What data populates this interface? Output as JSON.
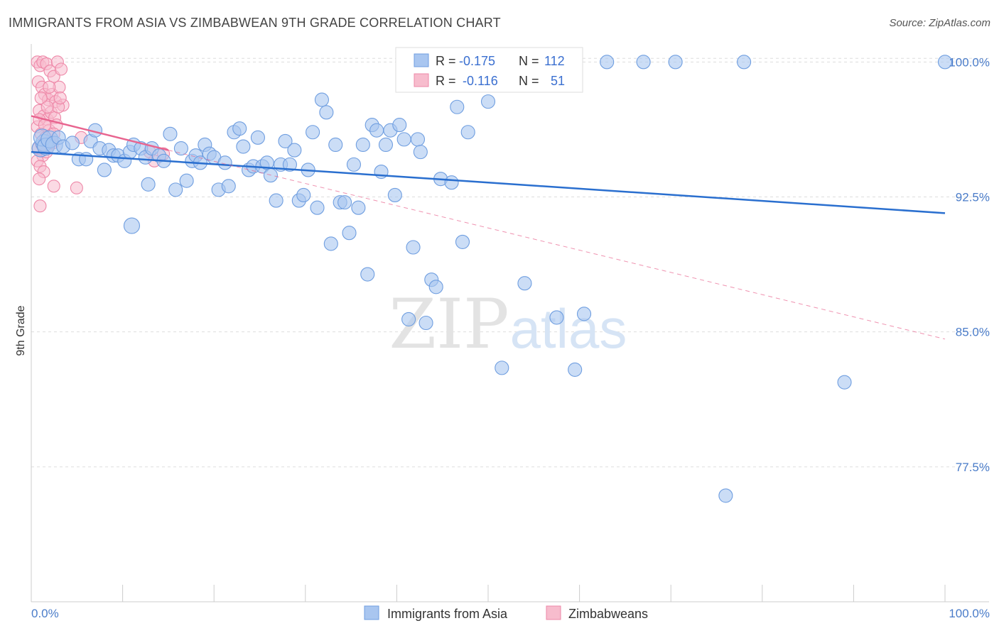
{
  "title": "IMMIGRANTS FROM ASIA VS ZIMBABWEAN 9TH GRADE CORRELATION CHART",
  "source": "Source: ZipAtlas.com",
  "watermark": {
    "zip": "ZIP",
    "atlas": "atlas"
  },
  "legend_box": [
    {
      "r_label": "R =",
      "r_value": "-0.175",
      "n_label": "N =",
      "n_value": "112"
    },
    {
      "r_label": "R =",
      "r_value": "-0.116",
      "n_label": "N =",
      "n_value": "51"
    }
  ],
  "colors": {
    "asia_fill": "#a9c6f0",
    "asia_stroke": "#6f9ee0",
    "asia_line": "#2a6fcf",
    "zim_fill": "#f7bccd",
    "zim_stroke": "#ee88a8",
    "zim_line": "#e8648f",
    "grid": "#dddddd",
    "axis_label": "#4a7cc9"
  },
  "chart_data": {
    "type": "scatter",
    "title": "IMMIGRANTS FROM ASIA VS ZIMBABWEAN 9TH GRADE CORRELATION CHART",
    "xlabel": "",
    "ylabel": "9th Grade",
    "xlim": [
      0,
      100
    ],
    "ylim": [
      70.0,
      101.0
    ],
    "x_tick_labels": [
      "0.0%",
      "100.0%"
    ],
    "y_ticks": [
      77.5,
      85.0,
      92.5,
      100.0
    ],
    "y_tick_labels": [
      "77.5%",
      "85.0%",
      "92.5%",
      "100.0%"
    ],
    "grid": true,
    "legend_position": "bottom",
    "series": [
      {
        "name": "Immigrants from Asia",
        "trend": {
          "x": [
            0,
            100
          ],
          "y": [
            95.0,
            91.6
          ]
        },
        "points": [
          [
            0.4,
            95.2
          ],
          [
            0.8,
            95.5
          ],
          [
            1.2,
            95.8
          ],
          [
            1.6,
            95.3
          ],
          [
            2.0,
            95.7
          ],
          [
            2.5,
            95.4
          ],
          [
            3.0,
            95.8
          ],
          [
            3.5,
            95.3
          ],
          [
            4.5,
            95.5
          ],
          [
            5.2,
            94.6
          ],
          [
            6.0,
            94.6
          ],
          [
            6.5,
            95.6
          ],
          [
            7.0,
            96.2
          ],
          [
            7.5,
            95.2
          ],
          [
            8.0,
            94.0
          ],
          [
            8.5,
            95.1
          ],
          [
            9.0,
            94.8
          ],
          [
            9.5,
            94.8
          ],
          [
            10.2,
            94.5
          ],
          [
            10.8,
            95.0
          ],
          [
            11.2,
            95.4
          ],
          [
            12.0,
            95.2
          ],
          [
            12.5,
            94.7
          ],
          [
            12.8,
            93.2
          ],
          [
            13.2,
            95.2
          ],
          [
            14.0,
            94.8
          ],
          [
            14.5,
            94.5
          ],
          [
            15.2,
            96.0
          ],
          [
            15.8,
            92.9
          ],
          [
            16.4,
            95.2
          ],
          [
            17.0,
            93.4
          ],
          [
            17.6,
            94.5
          ],
          [
            18.0,
            94.8
          ],
          [
            18.5,
            94.4
          ],
          [
            19.0,
            95.4
          ],
          [
            19.5,
            94.9
          ],
          [
            20.0,
            94.7
          ],
          [
            20.5,
            92.9
          ],
          [
            21.2,
            94.4
          ],
          [
            21.6,
            93.1
          ],
          [
            22.2,
            96.1
          ],
          [
            22.8,
            96.3
          ],
          [
            23.2,
            95.3
          ],
          [
            23.8,
            94.0
          ],
          [
            24.3,
            94.2
          ],
          [
            24.8,
            95.8
          ],
          [
            25.3,
            94.2
          ],
          [
            25.8,
            94.4
          ],
          [
            26.2,
            93.7
          ],
          [
            26.8,
            92.3
          ],
          [
            27.3,
            94.3
          ],
          [
            27.8,
            95.6
          ],
          [
            28.3,
            94.3
          ],
          [
            28.8,
            95.1
          ],
          [
            29.3,
            92.3
          ],
          [
            29.8,
            92.6
          ],
          [
            30.3,
            94.0
          ],
          [
            30.8,
            96.1
          ],
          [
            31.3,
            91.9
          ],
          [
            31.8,
            97.9
          ],
          [
            32.3,
            97.2
          ],
          [
            32.8,
            89.9
          ],
          [
            33.3,
            95.4
          ],
          [
            33.8,
            92.2
          ],
          [
            34.3,
            92.2
          ],
          [
            34.8,
            90.5
          ],
          [
            35.3,
            94.3
          ],
          [
            35.8,
            91.9
          ],
          [
            36.3,
            95.4
          ],
          [
            36.8,
            88.2
          ],
          [
            37.3,
            96.5
          ],
          [
            37.8,
            96.2
          ],
          [
            38.3,
            93.9
          ],
          [
            38.8,
            95.4
          ],
          [
            39.3,
            96.2
          ],
          [
            39.8,
            92.6
          ],
          [
            40.3,
            96.5
          ],
          [
            40.8,
            95.7
          ],
          [
            41.3,
            85.7
          ],
          [
            41.8,
            89.7
          ],
          [
            42.3,
            95.7
          ],
          [
            42.6,
            95.0
          ],
          [
            43.2,
            85.5
          ],
          [
            43.8,
            87.9
          ],
          [
            44.3,
            87.5
          ],
          [
            44.8,
            93.5
          ],
          [
            45.4,
            99.6
          ],
          [
            46.0,
            93.3
          ],
          [
            46.6,
            97.5
          ],
          [
            47.2,
            90.0
          ],
          [
            47.8,
            96.1
          ],
          [
            48.4,
            100.0
          ],
          [
            50.0,
            97.8
          ],
          [
            51.5,
            83.0
          ],
          [
            52.2,
            98.8
          ],
          [
            53.0,
            100.0
          ],
          [
            54.0,
            87.7
          ],
          [
            56.0,
            100.0
          ],
          [
            57.5,
            85.8
          ],
          [
            59.5,
            82.9
          ],
          [
            60.5,
            86.0
          ],
          [
            63.0,
            100.0
          ],
          [
            67.0,
            100.0
          ],
          [
            70.5,
            100.0
          ],
          [
            76.0,
            75.9
          ],
          [
            78.0,
            100.0
          ],
          [
            89.0,
            82.2
          ],
          [
            100.0,
            100.0
          ],
          [
            11.0,
            90.9
          ]
        ]
      },
      {
        "name": "Zimbabweans",
        "trend": {
          "x": [
            0,
            15
          ],
          "y": [
            97.0,
            95.1
          ]
        },
        "trend_extended": {
          "x": [
            15,
            100
          ],
          "y": [
            95.1,
            84.6
          ]
        },
        "points": [
          [
            0.2,
            100.0
          ],
          [
            0.5,
            99.8
          ],
          [
            0.8,
            100.0
          ],
          [
            1.2,
            99.9
          ],
          [
            1.6,
            99.5
          ],
          [
            2.0,
            99.2
          ],
          [
            2.4,
            100.0
          ],
          [
            2.8,
            99.6
          ],
          [
            0.3,
            98.9
          ],
          [
            0.7,
            98.6
          ],
          [
            1.0,
            98.2
          ],
          [
            1.4,
            97.9
          ],
          [
            1.8,
            98.2
          ],
          [
            2.2,
            97.8
          ],
          [
            2.6,
            98.6
          ],
          [
            3.0,
            97.6
          ],
          [
            0.4,
            97.3
          ],
          [
            0.9,
            97.0
          ],
          [
            1.3,
            96.8
          ],
          [
            1.7,
            97.2
          ],
          [
            2.1,
            96.9
          ],
          [
            2.5,
            97.5
          ],
          [
            0.2,
            96.4
          ],
          [
            0.6,
            96.0
          ],
          [
            1.1,
            95.8
          ],
          [
            1.5,
            96.2
          ],
          [
            1.9,
            95.5
          ],
          [
            2.3,
            96.5
          ],
          [
            0.3,
            95.2
          ],
          [
            0.8,
            94.8
          ],
          [
            1.2,
            95.0
          ],
          [
            0.2,
            94.5
          ],
          [
            0.5,
            94.2
          ],
          [
            0.9,
            93.9
          ],
          [
            0.4,
            93.5
          ],
          [
            2.0,
            93.1
          ],
          [
            0.5,
            92.0
          ],
          [
            4.5,
            93.0
          ],
          [
            5.0,
            95.8
          ],
          [
            12.5,
            95.0
          ],
          [
            14.0,
            94.9
          ],
          [
            13.0,
            94.5
          ],
          [
            0.6,
            98.0
          ],
          [
            1.5,
            98.6
          ],
          [
            2.7,
            98.0
          ],
          [
            0.4,
            96.8
          ],
          [
            1.0,
            96.5
          ],
          [
            1.6,
            95.5
          ],
          [
            0.7,
            95.4
          ],
          [
            1.3,
            97.5
          ],
          [
            2.0,
            96.0
          ]
        ]
      }
    ]
  },
  "bottom_legend": [
    {
      "label": "Immigrants from Asia"
    },
    {
      "label": "Zimbabweans"
    }
  ]
}
